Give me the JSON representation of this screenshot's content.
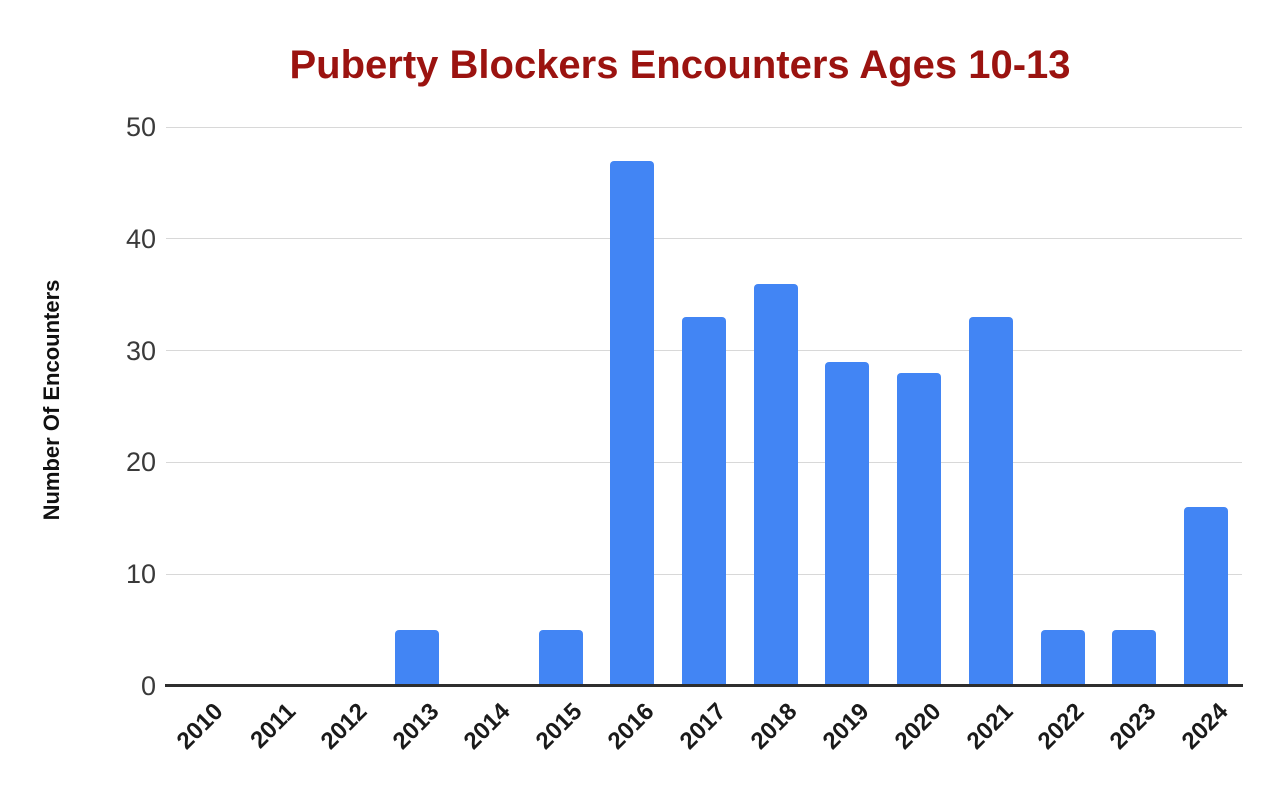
{
  "chart_data": {
    "type": "bar",
    "title": "Puberty Blockers Encounters Ages 10-13",
    "ylabel": "Number Of Encounters",
    "xlabel": "",
    "categories": [
      "2010",
      "2011",
      "2012",
      "2013",
      "2014",
      "2015",
      "2016",
      "2017",
      "2018",
      "2019",
      "2020",
      "2021",
      "2022",
      "2023",
      "2024"
    ],
    "values": [
      0,
      0,
      0,
      5,
      0,
      5,
      47,
      33,
      36,
      29,
      28,
      33,
      5,
      5,
      16
    ],
    "yticks": [
      0,
      10,
      20,
      30,
      40,
      50
    ],
    "ylim": [
      0,
      50
    ],
    "grid": true,
    "legend": "none",
    "x_label_rotation_deg": -45
  },
  "colors": {
    "bar": "#4285F4",
    "title": "#9B1310",
    "grid": "#D8D8D8",
    "axis": "#2E2E2E",
    "ytick_label": "#3A3A3A",
    "xtick_label": "#1A1A1A",
    "ylabel": "#111111",
    "background": "#FFFFFF"
  }
}
